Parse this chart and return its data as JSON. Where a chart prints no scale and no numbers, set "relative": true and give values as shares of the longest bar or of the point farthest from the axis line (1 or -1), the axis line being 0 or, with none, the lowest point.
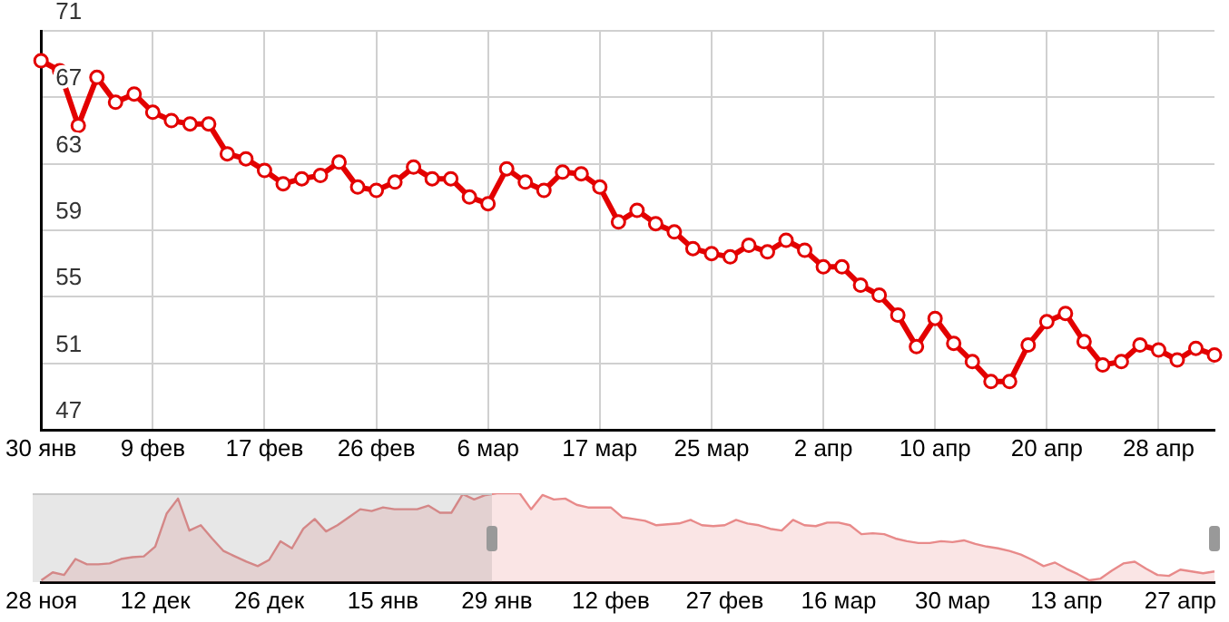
{
  "chart_data": [
    {
      "type": "line",
      "categories": [
        "30 янв",
        null,
        null,
        null,
        null,
        null,
        "9 фев",
        null,
        null,
        null,
        null,
        null,
        "17 фев",
        null,
        null,
        null,
        null,
        null,
        "26 фев",
        null,
        null,
        null,
        null,
        null,
        "6 мар",
        null,
        null,
        null,
        null,
        null,
        "17 мар",
        null,
        null,
        null,
        null,
        null,
        "25 мар",
        null,
        null,
        null,
        null,
        null,
        "2 апр",
        null,
        null,
        null,
        null,
        null,
        "10 апр",
        null,
        null,
        null,
        null,
        null,
        "20 апр",
        null,
        null,
        null,
        null,
        null,
        "28 апр",
        null,
        null,
        null
      ],
      "series": [
        {
          "color": "#e30000",
          "values": [
            69.2,
            68.6,
            65.3,
            68.2,
            66.7,
            67.2,
            66.1,
            65.6,
            65.4,
            65.4,
            63.6,
            63.3,
            62.6,
            61.8,
            62.1,
            62.3,
            63.1,
            61.6,
            61.4,
            61.9,
            62.8,
            62.1,
            62.1,
            61.0,
            60.6,
            62.7,
            61.9,
            61.4,
            62.5,
            62.4,
            61.6,
            59.5,
            60.2,
            59.4,
            58.9,
            57.9,
            57.6,
            57.4,
            58.1,
            57.7,
            58.4,
            57.8,
            56.8,
            56.8,
            55.7,
            55.1,
            53.9,
            52.0,
            53.7,
            52.2,
            51.1,
            49.9,
            49.9,
            52.1,
            53.5,
            54.0,
            52.3,
            50.9,
            51.1,
            52.1,
            51.8,
            51.2,
            51.9,
            51.5
          ]
        }
      ],
      "ylim": [
        47,
        71
      ],
      "yticks": [
        47,
        51,
        55,
        59,
        63,
        67,
        71
      ],
      "grid": true,
      "marker": "circle"
    },
    {
      "type": "area",
      "relative": true,
      "color": "#e88a8a",
      "categories": [
        "28 ноя",
        null,
        null,
        null,
        null,
        null,
        null,
        null,
        null,
        null,
        "12 дек",
        null,
        null,
        null,
        null,
        null,
        null,
        null,
        null,
        null,
        "26 дек",
        null,
        null,
        null,
        null,
        null,
        null,
        null,
        null,
        null,
        "15 янв",
        null,
        null,
        null,
        null,
        null,
        null,
        null,
        null,
        null,
        "29 янв",
        null,
        null,
        null,
        null,
        null,
        null,
        null,
        null,
        null,
        "12 фев",
        null,
        null,
        null,
        null,
        null,
        null,
        null,
        null,
        null,
        "27 фев",
        null,
        null,
        null,
        null,
        null,
        null,
        null,
        null,
        null,
        "16 мар",
        null,
        null,
        null,
        null,
        null,
        null,
        null,
        null,
        null,
        "30 мар",
        null,
        null,
        null,
        null,
        null,
        null,
        null,
        null,
        null,
        "13 апр",
        null,
        null,
        null,
        null,
        null,
        null,
        null,
        null,
        null,
        "27 апр",
        null,
        null,
        null
      ],
      "values": [
        0.02,
        0.11,
        0.08,
        0.26,
        0.2,
        0.2,
        0.21,
        0.26,
        0.28,
        0.29,
        0.4,
        0.77,
        0.94,
        0.58,
        0.64,
        0.49,
        0.35,
        0.29,
        0.23,
        0.18,
        0.25,
        0.46,
        0.38,
        0.6,
        0.71,
        0.57,
        0.64,
        0.73,
        0.82,
        0.8,
        0.84,
        0.82,
        0.82,
        0.82,
        0.86,
        0.78,
        0.78,
        0.99,
        0.93,
        0.98,
        1,
        1,
        1,
        0.82,
        0.98,
        0.93,
        0.94,
        0.87,
        0.84,
        0.84,
        0.84,
        0.73,
        0.71,
        0.69,
        0.64,
        0.65,
        0.66,
        0.7,
        0.64,
        0.63,
        0.64,
        0.7,
        0.66,
        0.64,
        0.6,
        0.58,
        0.7,
        0.64,
        0.63,
        0.67,
        0.67,
        0.64,
        0.54,
        0.55,
        0.54,
        0.49,
        0.46,
        0.44,
        0.44,
        0.46,
        0.45,
        0.47,
        0.43,
        0.4,
        0.38,
        0.35,
        0.31,
        0.25,
        0.18,
        0.22,
        0.15,
        0.09,
        0.02,
        0.04,
        0.13,
        0.21,
        0.23,
        0.15,
        0.08,
        0.07,
        0.14,
        0.12,
        0.1,
        0.12
      ]
    }
  ]
}
